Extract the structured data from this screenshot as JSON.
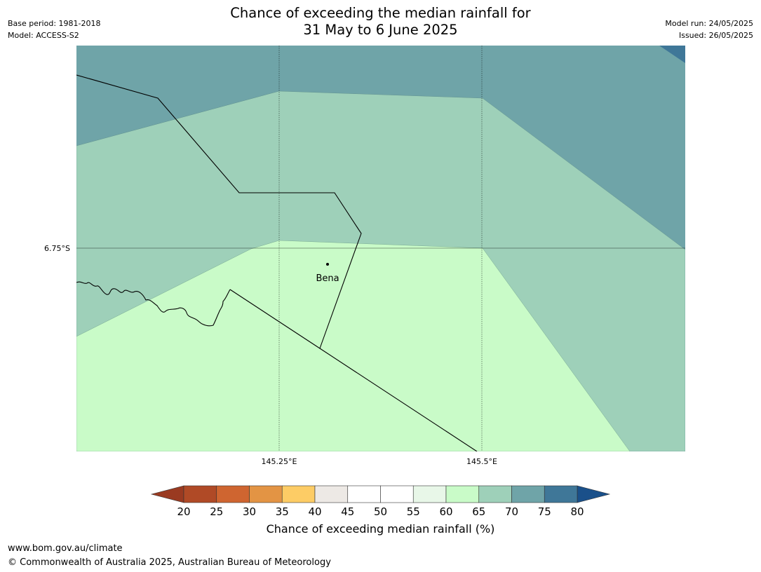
{
  "header": {
    "title_line1": "Chance of exceeding the median rainfall for",
    "title_line2": "31 May to 6 June 2025",
    "base_period": "Base period: 1981-2018",
    "model": "Model: ACCESS-S2",
    "model_run": "Model run: 24/05/2025",
    "issued": "Issued: 26/05/2025"
  },
  "map": {
    "lat_label": "6.75°S",
    "lon_labels": [
      "145.25°E",
      "145.5°E"
    ],
    "place": {
      "name": "Bena",
      "marker": "dot-marker"
    },
    "colors": {
      "band_65_70": "#9ed0b9",
      "band_70_75": "#6fa4a8",
      "band_60_65": "#c9fbc8",
      "band_75_80": "#3f7798",
      "border": "#000000",
      "gridline": "#000000"
    }
  },
  "colorbar": {
    "title": "Chance of exceeding median rainfall (%)",
    "ticks": [
      "20",
      "25",
      "30",
      "35",
      "40",
      "45",
      "50",
      "55",
      "60",
      "65",
      "70",
      "75",
      "80"
    ],
    "low_extend_color": "#9a3a21",
    "high_extend_color": "#1a508a",
    "segment_colors": [
      "#b04a26",
      "#cf6530",
      "#e39444",
      "#fdcc65",
      "#ede9e5",
      "#ffffff",
      "#ffffff",
      "#e8f7e8",
      "#c9fbc8",
      "#9ed0b9",
      "#6fa4a8",
      "#3f7798"
    ]
  },
  "footer": {
    "url": "www.bom.gov.au/climate",
    "copyright": "© Commonwealth of Australia 2025, Australian Bureau of Meteorology"
  }
}
